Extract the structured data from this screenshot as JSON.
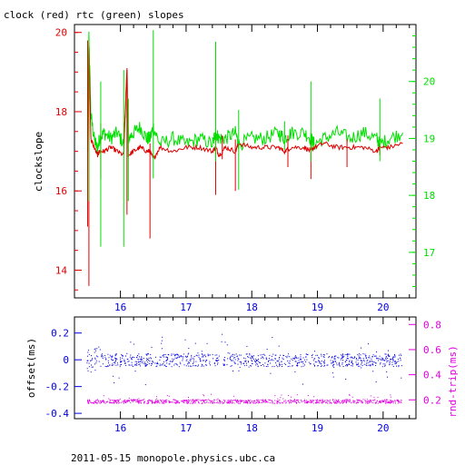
{
  "title": "clock (red) rtc (green) slopes",
  "footer": "2011-05-15 monopole.physics.ubc.ca",
  "colors": {
    "red": "#e00000",
    "green": "#00e000",
    "blue": "#0000dd",
    "magenta": "#e000e0",
    "axis": "#000000"
  },
  "chart_data": [
    {
      "type": "line",
      "title": "clock (red) rtc (green) slopes",
      "xlabel": "",
      "ylabel_left": "clockslope",
      "xlim": [
        15.3,
        20.5
      ],
      "x_ticks": [
        "16",
        "17",
        "18",
        "19",
        "20"
      ],
      "ylim_left": [
        13.3,
        20.2
      ],
      "y_ticks_left": [
        "14",
        "16",
        "18",
        "20"
      ],
      "ylim_right": [
        16.2,
        21.0
      ],
      "y_ticks_right": [
        "17",
        "18",
        "19",
        "20"
      ],
      "series": [
        {
          "name": "clock",
          "color": "red",
          "axis": "left",
          "x": [
            15.5,
            15.52,
            15.55,
            15.6,
            15.65,
            15.68,
            15.75,
            15.85,
            15.95,
            16.05,
            16.1,
            16.12,
            16.2,
            16.3,
            16.4,
            16.45,
            16.5,
            16.6,
            16.8,
            17.0,
            17.2,
            17.4,
            17.45,
            17.5,
            17.6,
            17.75,
            17.8,
            18.0,
            18.2,
            18.4,
            18.5,
            18.6,
            18.8,
            18.9,
            18.95,
            19.1,
            19.3,
            19.5,
            19.7,
            19.9,
            19.95,
            20.1,
            20.3
          ],
          "y": [
            17.0,
            19.7,
            17.3,
            17.1,
            16.9,
            17.0,
            17.0,
            17.1,
            17.0,
            16.9,
            19.1,
            16.9,
            17.0,
            17.1,
            17.0,
            17.0,
            16.8,
            17.1,
            17.0,
            17.1,
            17.1,
            17.0,
            17.1,
            16.9,
            17.1,
            17.0,
            17.2,
            17.1,
            17.1,
            17.1,
            17.0,
            17.1,
            17.1,
            17.0,
            17.1,
            17.2,
            17.1,
            17.1,
            17.1,
            17.0,
            17.1,
            17.1,
            17.2
          ]
        },
        {
          "name": "rtc",
          "color": "green",
          "axis": "right",
          "x": [
            15.5,
            15.52,
            15.55,
            15.6,
            15.65,
            15.68,
            15.75,
            15.85,
            15.95,
            16.05,
            16.1,
            16.12,
            16.2,
            16.3,
            16.4,
            16.45,
            16.5,
            16.6,
            16.8,
            17.0,
            17.2,
            17.4,
            17.45,
            17.5,
            17.6,
            17.75,
            17.8,
            18.0,
            18.2,
            18.4,
            18.5,
            18.6,
            18.8,
            18.9,
            18.95,
            19.1,
            19.3,
            19.5,
            19.7,
            19.9,
            19.95,
            20.1,
            20.3
          ],
          "y": [
            19.0,
            20.8,
            19.4,
            19.0,
            18.8,
            19.0,
            19.1,
            19.0,
            19.1,
            18.9,
            20.1,
            19.0,
            19.1,
            19.2,
            19.0,
            19.0,
            19.2,
            18.9,
            19.0,
            18.9,
            19.0,
            18.9,
            19.1,
            19.0,
            19.0,
            19.1,
            18.9,
            19.0,
            19.0,
            19.1,
            19.0,
            19.1,
            19.1,
            19.0,
            18.9,
            19.0,
            19.1,
            19.0,
            19.1,
            19.0,
            18.9,
            19.0,
            19.1
          ]
        }
      ],
      "spikes": [
        {
          "series": "clock",
          "x": 15.5,
          "y0": 15.1,
          "y1": 19.8
        },
        {
          "series": "clock",
          "x": 15.52,
          "y0": 13.6,
          "y1": 18.4
        },
        {
          "series": "clock",
          "x": 15.7,
          "y0": 16.3,
          "y1": 17.7
        },
        {
          "series": "clock",
          "x": 16.1,
          "y0": 15.4,
          "y1": 19.1
        },
        {
          "series": "clock",
          "x": 16.45,
          "y0": 14.8,
          "y1": 17.2
        },
        {
          "series": "clock",
          "x": 17.45,
          "y0": 15.9,
          "y1": 17.5
        },
        {
          "series": "clock",
          "x": 17.55,
          "y0": 16.8,
          "y1": 17.4
        },
        {
          "series": "clock",
          "x": 17.75,
          "y0": 16.0,
          "y1": 17.3
        },
        {
          "series": "clock",
          "x": 18.55,
          "y0": 16.6,
          "y1": 17.4
        },
        {
          "series": "clock",
          "x": 18.9,
          "y0": 16.3,
          "y1": 17.3
        },
        {
          "series": "clock",
          "x": 19.45,
          "y0": 16.6,
          "y1": 17.3
        },
        {
          "series": "clock",
          "x": 19.95,
          "y0": 16.9,
          "y1": 17.2
        },
        {
          "series": "rtc",
          "x": 15.52,
          "y0": 17.9,
          "y1": 20.8
        },
        {
          "series": "rtc",
          "x": 15.7,
          "y0": 17.1,
          "y1": 20.0
        },
        {
          "series": "rtc",
          "x": 16.05,
          "y0": 17.1,
          "y1": 20.2
        },
        {
          "series": "rtc",
          "x": 16.12,
          "y0": 17.9,
          "y1": 19.7
        },
        {
          "series": "rtc",
          "x": 16.5,
          "y0": 18.3,
          "y1": 20.9
        },
        {
          "series": "rtc",
          "x": 17.45,
          "y0": 18.6,
          "y1": 20.7
        },
        {
          "series": "rtc",
          "x": 17.8,
          "y0": 18.1,
          "y1": 19.5
        },
        {
          "series": "rtc",
          "x": 18.5,
          "y0": 18.8,
          "y1": 19.3
        },
        {
          "series": "rtc",
          "x": 18.9,
          "y0": 18.6,
          "y1": 20.0
        },
        {
          "series": "rtc",
          "x": 19.95,
          "y0": 18.6,
          "y1": 19.7
        }
      ]
    },
    {
      "type": "scatter",
      "ylabel_left": "offset(ms)",
      "ylabel_right": "rnd-trip(ms)",
      "xlim": [
        15.3,
        20.5
      ],
      "x_ticks": [
        "16",
        "17",
        "18",
        "19",
        "20"
      ],
      "ylim_left": [
        -0.44,
        0.32
      ],
      "y_ticks_left": [
        "-0.4",
        "-0.2",
        "0",
        "0.2"
      ],
      "ylim_right": [
        0.05,
        0.86
      ],
      "y_ticks_right": [
        "0.2",
        "0.4",
        "0.6",
        "0.8"
      ],
      "series": [
        {
          "name": "offset",
          "color": "blue",
          "axis": "left",
          "center": 0.0,
          "spread": 0.03
        },
        {
          "name": "rnd-trip",
          "color": "magenta",
          "axis": "right",
          "center": 0.19,
          "spread": 0.01
        }
      ]
    }
  ]
}
